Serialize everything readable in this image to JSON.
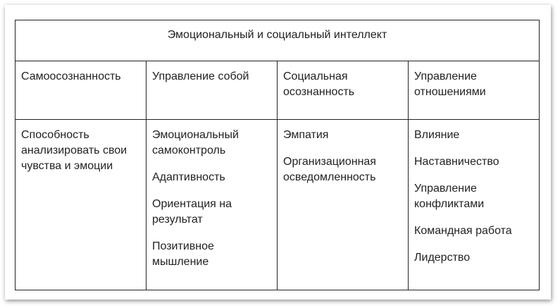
{
  "table": {
    "title": "Эмоциональный и социальный интеллект",
    "columns": [
      {
        "header": "Самоосознанность",
        "items": [
          "Способность анализировать свои чувства и эмоции"
        ]
      },
      {
        "header": "Управление собой",
        "items": [
          "Эмоциональный самоконтроль",
          "Адаптивность",
          "Ориентация на результат",
          "Позитивное мышление"
        ]
      },
      {
        "header": "Социальная осознанность",
        "items": [
          "Эмпатия",
          "Организационная осведомленность"
        ]
      },
      {
        "header": "Управление отношениями",
        "items": [
          "Влияние",
          "Наставничество",
          "Управление конфликтами",
          "Командная работа",
          "Лидерство"
        ]
      }
    ]
  }
}
